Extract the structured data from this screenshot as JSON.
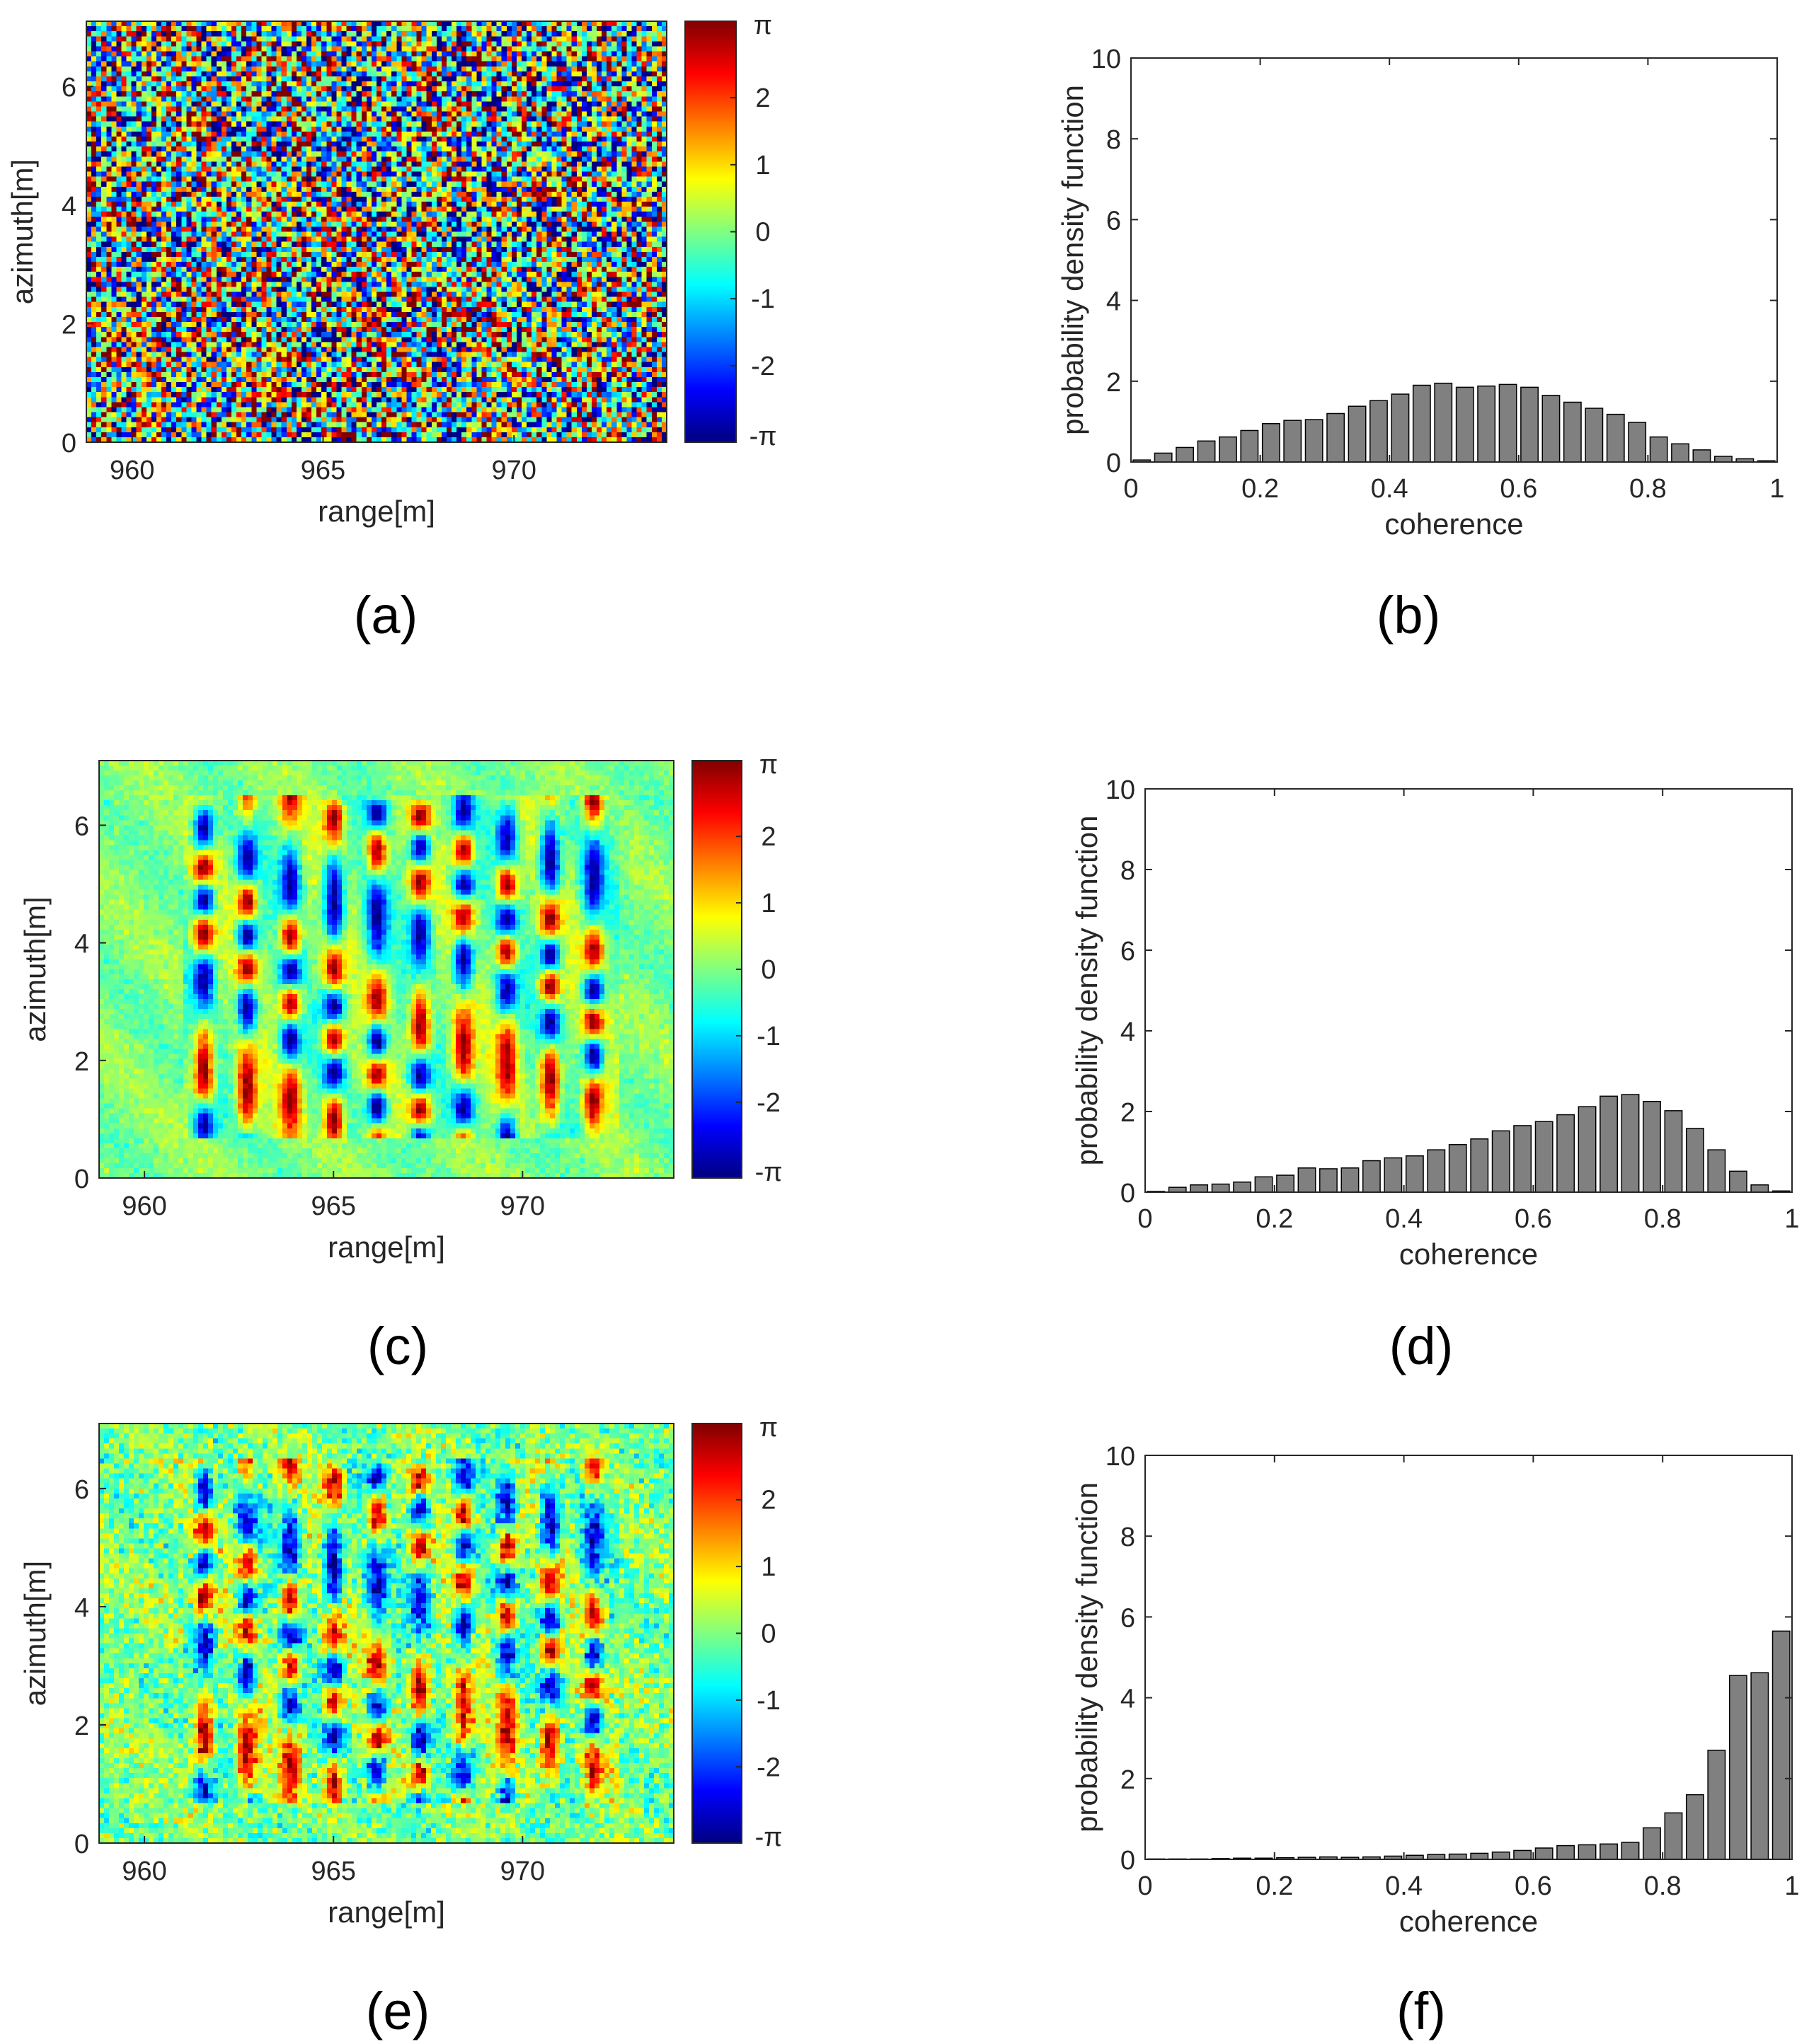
{
  "figure": {
    "captions": [
      "(a)",
      "(b)",
      "(c)",
      "(d)",
      "(e)",
      "(f)"
    ]
  },
  "chart_data": [
    {
      "panel": "a",
      "type": "heatmap",
      "title": "",
      "xlabel": "range[m]",
      "ylabel": "azimuth[m]",
      "xlim": [
        958.8,
        974.0
      ],
      "ylim": [
        0,
        7.1
      ],
      "xticks": [
        960,
        965,
        970
      ],
      "yticks": [
        0,
        2,
        4,
        6
      ],
      "colorbar": {
        "colormap": "jet",
        "range": [
          -3.14159,
          3.14159
        ],
        "tick_values": [
          -3.14159,
          -2,
          -1,
          0,
          1,
          2,
          3.14159
        ],
        "tick_labels": [
          "-π",
          "-2",
          "-1",
          "0",
          "1",
          "2",
          "π"
        ]
      },
      "pattern": {
        "style": "noisy",
        "noise": 2.6,
        "stripe_amp": 1.3
      }
    },
    {
      "panel": "b",
      "type": "bar",
      "title": "",
      "xlabel": "coherence",
      "ylabel": "probability density function",
      "xlim": [
        0,
        1
      ],
      "ylim": [
        0,
        10
      ],
      "xticks": [
        0,
        0.2,
        0.4,
        0.6,
        0.8,
        1
      ],
      "xtick_labels": [
        "0",
        "0.2",
        "0.4",
        "0.6",
        "0.8",
        "1"
      ],
      "yticks": [
        0,
        2,
        4,
        6,
        8,
        10
      ],
      "bin_centers": [
        0.0167,
        0.05,
        0.0833,
        0.1167,
        0.15,
        0.1833,
        0.2167,
        0.25,
        0.2833,
        0.3167,
        0.35,
        0.3833,
        0.4167,
        0.45,
        0.4833,
        0.5167,
        0.55,
        0.5833,
        0.6167,
        0.65,
        0.6833,
        0.7167,
        0.75,
        0.7833,
        0.8167,
        0.85,
        0.8833,
        0.9167,
        0.95,
        0.9833
      ],
      "values": [
        0.05,
        0.22,
        0.36,
        0.52,
        0.62,
        0.78,
        0.95,
        1.03,
        1.05,
        1.2,
        1.38,
        1.52,
        1.68,
        1.9,
        1.95,
        1.85,
        1.88,
        1.92,
        1.85,
        1.65,
        1.48,
        1.33,
        1.18,
        0.98,
        0.62,
        0.45,
        0.3,
        0.14,
        0.08,
        0.03
      ]
    },
    {
      "panel": "c",
      "type": "heatmap",
      "title": "",
      "xlabel": "range[m]",
      "ylabel": "azimuth[m]",
      "xlim": [
        958.8,
        974.0
      ],
      "ylim": [
        0,
        7.1
      ],
      "xticks": [
        960,
        965,
        970
      ],
      "yticks": [
        0,
        2,
        4,
        6
      ],
      "colorbar": {
        "colormap": "jet",
        "range": [
          -3.14159,
          3.14159
        ],
        "tick_values": [
          -3.14159,
          -2,
          -1,
          0,
          1,
          2,
          3.14159
        ],
        "tick_labels": [
          "-π",
          "-2",
          "-1",
          "0",
          "1",
          "2",
          "π"
        ]
      },
      "pattern": {
        "style": "clean",
        "noise": 0.22,
        "stripe_amp": 3.1
      }
    },
    {
      "panel": "d",
      "type": "bar",
      "title": "",
      "xlabel": "coherence",
      "ylabel": "probability density function",
      "xlim": [
        0,
        1
      ],
      "ylim": [
        0,
        10
      ],
      "xticks": [
        0,
        0.2,
        0.4,
        0.6,
        0.8,
        1
      ],
      "xtick_labels": [
        "0",
        "0.2",
        "0.4",
        "0.6",
        "0.8",
        "1"
      ],
      "yticks": [
        0,
        2,
        4,
        6,
        8,
        10
      ],
      "bin_centers": [
        0.0167,
        0.05,
        0.0833,
        0.1167,
        0.15,
        0.1833,
        0.2167,
        0.25,
        0.2833,
        0.3167,
        0.35,
        0.3833,
        0.4167,
        0.45,
        0.4833,
        0.5167,
        0.55,
        0.5833,
        0.6167,
        0.65,
        0.6833,
        0.7167,
        0.75,
        0.7833,
        0.8167,
        0.85,
        0.8833,
        0.9167,
        0.95,
        0.9833
      ],
      "values": [
        0.02,
        0.12,
        0.18,
        0.2,
        0.25,
        0.38,
        0.42,
        0.6,
        0.58,
        0.6,
        0.78,
        0.85,
        0.9,
        1.05,
        1.18,
        1.32,
        1.52,
        1.65,
        1.75,
        1.92,
        2.12,
        2.38,
        2.42,
        2.25,
        2.02,
        1.58,
        1.05,
        0.52,
        0.18,
        0.03
      ]
    },
    {
      "panel": "e",
      "type": "heatmap",
      "title": "",
      "xlabel": "range[m]",
      "ylabel": "azimuth[m]",
      "xlim": [
        958.8,
        974.0
      ],
      "ylim": [
        0,
        7.1
      ],
      "xticks": [
        960,
        965,
        970
      ],
      "yticks": [
        0,
        2,
        4,
        6
      ],
      "colorbar": {
        "colormap": "jet",
        "range": [
          -3.14159,
          3.14159
        ],
        "tick_values": [
          -3.14159,
          -2,
          -1,
          0,
          1,
          2,
          3.14159
        ],
        "tick_labels": [
          "-π",
          "-2",
          "-1",
          "0",
          "1",
          "2",
          "π"
        ]
      },
      "pattern": {
        "style": "medium",
        "noise": 0.55,
        "stripe_amp": 2.8
      }
    },
    {
      "panel": "f",
      "type": "bar",
      "title": "",
      "xlabel": "coherence",
      "ylabel": "probability density function",
      "xlim": [
        0,
        1
      ],
      "ylim": [
        0,
        10
      ],
      "xticks": [
        0,
        0.2,
        0.4,
        0.6,
        0.8,
        1
      ],
      "xtick_labels": [
        "0",
        "0.2",
        "0.4",
        "0.6",
        "0.8",
        "1"
      ],
      "yticks": [
        0,
        2,
        4,
        6,
        8,
        10
      ],
      "bin_centers": [
        0.0167,
        0.05,
        0.0833,
        0.1167,
        0.15,
        0.1833,
        0.2167,
        0.25,
        0.2833,
        0.3167,
        0.35,
        0.3833,
        0.4167,
        0.45,
        0.4833,
        0.5167,
        0.55,
        0.5833,
        0.6167,
        0.65,
        0.6833,
        0.7167,
        0.75,
        0.7833,
        0.8167,
        0.85,
        0.8833,
        0.9167,
        0.95,
        0.9833
      ],
      "values": [
        0.01,
        0.01,
        0.01,
        0.02,
        0.03,
        0.03,
        0.04,
        0.05,
        0.06,
        0.05,
        0.06,
        0.08,
        0.1,
        0.12,
        0.13,
        0.15,
        0.18,
        0.22,
        0.28,
        0.34,
        0.36,
        0.38,
        0.42,
        0.78,
        1.15,
        1.6,
        2.7,
        4.55,
        4.62,
        5.65
      ]
    }
  ]
}
